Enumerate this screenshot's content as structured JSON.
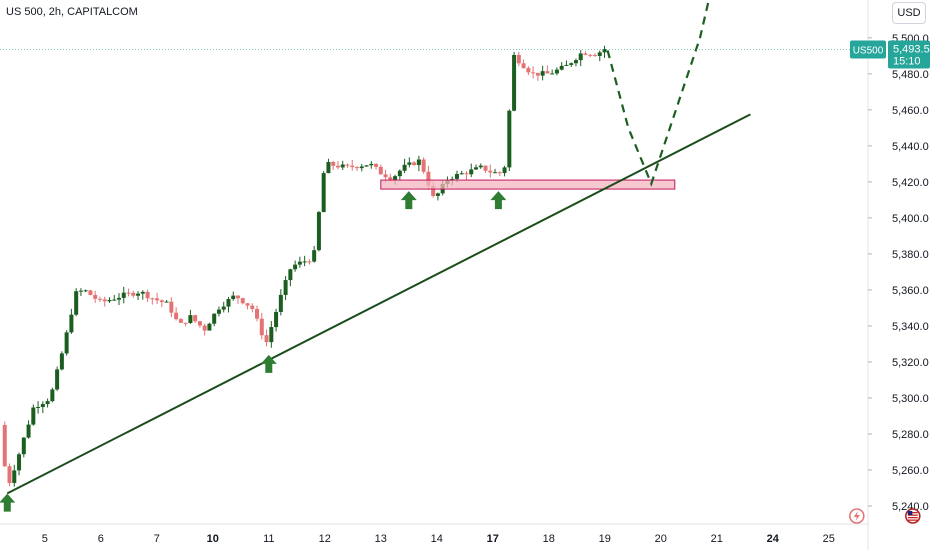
{
  "header": {
    "title": "US 500, 2h, CAPITALCOM",
    "currency_button": "USD"
  },
  "price_label": {
    "symbol": "US500",
    "price": "5,493.5",
    "countdown": "15:10",
    "color": "#26a69a"
  },
  "colors": {
    "up": "#1b5e20",
    "down": "#e57373",
    "trendline": "#1b4d1b",
    "support_zone_fill": "#f4b6bf",
    "support_zone_border": "#c2185b",
    "arrow": "#2e7d32",
    "projection": "#1b5e20"
  },
  "events": [
    {
      "name": "lightning-icon",
      "x": 19.5
    },
    {
      "name": "us-flag-icon",
      "x": 20.5
    }
  ],
  "chart_data": {
    "type": "candlestick",
    "title": "US 500, 2h, CAPITALCOM",
    "xlabel": "",
    "ylabel": "",
    "x_ticks": [
      {
        "label": "5",
        "x": 5
      },
      {
        "label": "6",
        "x": 6
      },
      {
        "label": "7",
        "x": 7
      },
      {
        "label": "10",
        "x": 8,
        "bold": true
      },
      {
        "label": "11",
        "x": 9
      },
      {
        "label": "12",
        "x": 10
      },
      {
        "label": "13",
        "x": 11
      },
      {
        "label": "14",
        "x": 12
      },
      {
        "label": "17",
        "x": 13,
        "bold": true
      },
      {
        "label": "18",
        "x": 14
      },
      {
        "label": "19",
        "x": 15
      },
      {
        "label": "20",
        "x": 16
      },
      {
        "label": "21",
        "x": 17
      },
      {
        "label": "24",
        "x": 18,
        "bold": true
      },
      {
        "label": "25",
        "x": 19
      }
    ],
    "y_ticks": [
      5240,
      5260,
      5280,
      5300,
      5320,
      5340,
      5360,
      5380,
      5400,
      5420,
      5440,
      5460,
      5480,
      5500
    ],
    "y_tick_labels": [
      "5,240.0",
      "5,260.0",
      "5,280.0",
      "5,300.0",
      "5,320.0",
      "5,340.0",
      "5,360.0",
      "5,380.0",
      "5,400.0",
      "5,420.0",
      "5,440.0",
      "5,460.0",
      "5,480.0",
      "5,500.0"
    ],
    "xlim": [
      4.2,
      19.7
    ],
    "ylim": [
      5230,
      5521
    ],
    "grid": false,
    "anchors": [
      [
        4.2,
        5285
      ],
      [
        4.33,
        5250
      ],
      [
        4.5,
        5265
      ],
      [
        4.8,
        5295
      ],
      [
        5.1,
        5300
      ],
      [
        5.35,
        5330
      ],
      [
        5.55,
        5358
      ],
      [
        5.7,
        5360
      ],
      [
        6.0,
        5353
      ],
      [
        6.4,
        5357
      ],
      [
        6.7,
        5359
      ],
      [
        6.95,
        5355
      ],
      [
        7.2,
        5352
      ],
      [
        7.4,
        5340
      ],
      [
        7.6,
        5345
      ],
      [
        7.85,
        5338
      ],
      [
        8.1,
        5350
      ],
      [
        8.4,
        5357
      ],
      [
        8.7,
        5350
      ],
      [
        8.95,
        5330
      ],
      [
        9.2,
        5355
      ],
      [
        9.4,
        5373
      ],
      [
        9.8,
        5378
      ],
      [
        10.0,
        5430
      ],
      [
        10.4,
        5428
      ],
      [
        10.8,
        5430
      ],
      [
        11.0,
        5425
      ],
      [
        11.2,
        5422
      ],
      [
        11.4,
        5428
      ],
      [
        11.7,
        5432
      ],
      [
        11.95,
        5410
      ],
      [
        12.2,
        5422
      ],
      [
        12.5,
        5425
      ],
      [
        12.8,
        5428
      ],
      [
        13.0,
        5425
      ],
      [
        13.2,
        5425
      ],
      [
        13.38,
        5490
      ],
      [
        13.7,
        5480
      ],
      [
        14.0,
        5480
      ],
      [
        14.3,
        5484
      ],
      [
        14.6,
        5492
      ],
      [
        14.85,
        5491
      ],
      [
        15.0,
        5494
      ]
    ],
    "trendline": {
      "x": [
        4.33,
        17.6
      ],
      "y": [
        5247,
        5457.5
      ]
    },
    "support_zone": {
      "x": [
        11.0,
        16.25
      ],
      "y": [
        5416,
        5421
      ]
    },
    "arrows": [
      {
        "x": 4.33,
        "y": 5248
      },
      {
        "x": 9.0,
        "y": 5325
      },
      {
        "x": 11.5,
        "y": 5416
      },
      {
        "x": 13.1,
        "y": 5416
      }
    ],
    "projection": {
      "x": [
        15.05,
        15.42,
        15.83,
        16.7,
        16.85
      ],
      "y": [
        5493,
        5450,
        5419,
        5500,
        5520
      ]
    }
  }
}
